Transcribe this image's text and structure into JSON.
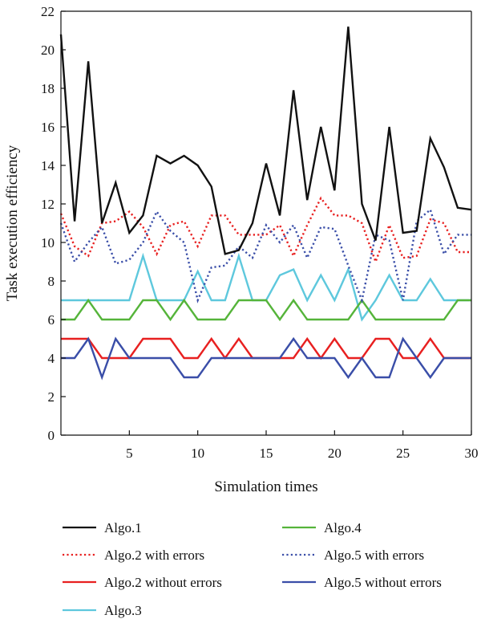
{
  "chart_data": {
    "type": "line",
    "title": "",
    "xlabel": "Simulation times",
    "ylabel": "Task execution efficiency",
    "xlim": [
      0,
      30
    ],
    "ylim": [
      0,
      22
    ],
    "x_ticks": [
      5,
      10,
      15,
      20,
      25,
      30
    ],
    "y_ticks": [
      0,
      2,
      4,
      6,
      8,
      10,
      12,
      14,
      16,
      18,
      20,
      22
    ],
    "grid": false,
    "legend_position": "bottom",
    "x": [
      0,
      1,
      2,
      3,
      4,
      5,
      6,
      7,
      8,
      9,
      10,
      11,
      12,
      13,
      14,
      15,
      16,
      17,
      18,
      19,
      20,
      21,
      22,
      23,
      24,
      25,
      26,
      27,
      28,
      29,
      30
    ],
    "series": [
      {
        "name": "Algo.1",
        "color": "#111111",
        "style": "solid",
        "values": [
          20.8,
          11.1,
          19.4,
          11.0,
          13.1,
          10.5,
          11.4,
          14.5,
          14.1,
          14.5,
          14.0,
          12.9,
          9.4,
          9.6,
          11.0,
          14.1,
          11.4,
          17.9,
          12.2,
          16.0,
          12.7,
          21.2,
          12.0,
          10.1,
          16.0,
          10.5,
          10.6,
          15.4,
          13.9,
          11.8,
          11.7
        ]
      },
      {
        "name": "Algo.2 with errors",
        "color": "#e82020",
        "style": "dotted",
        "values": [
          11.5,
          9.8,
          9.3,
          11.0,
          11.1,
          11.6,
          10.8,
          9.4,
          10.9,
          11.1,
          9.8,
          11.4,
          11.4,
          10.4,
          10.4,
          10.4,
          10.9,
          9.3,
          10.9,
          12.3,
          11.4,
          11.4,
          11.0,
          9.0,
          10.9,
          9.2,
          9.3,
          11.2,
          11.0,
          9.5,
          9.5
        ]
      },
      {
        "name": "Algo.2 without errors",
        "color": "#e82020",
        "style": "solid",
        "values": [
          5,
          5,
          5,
          4,
          4,
          4,
          5,
          5,
          5,
          4,
          4,
          5,
          4,
          5,
          4,
          4,
          4,
          4,
          5,
          4,
          5,
          4,
          4,
          5,
          5,
          4,
          4,
          5,
          4,
          4,
          4
        ]
      },
      {
        "name": "Algo.3",
        "color": "#5ec8dd",
        "style": "solid",
        "values": [
          7,
          7,
          7,
          7,
          7,
          7,
          9.3,
          7,
          7,
          7,
          8.5,
          7,
          7,
          9.3,
          7,
          7,
          8.3,
          8.6,
          7,
          8.3,
          7,
          8.6,
          6,
          7,
          8.3,
          7,
          7,
          8.1,
          7,
          7,
          7
        ]
      },
      {
        "name": "Algo.4",
        "color": "#55b43a",
        "style": "solid",
        "values": [
          6,
          6,
          7,
          6,
          6,
          6,
          7,
          7,
          6,
          7,
          6,
          6,
          6,
          7,
          7,
          7,
          6,
          7,
          6,
          6,
          6,
          6,
          7,
          6,
          6,
          6,
          6,
          6,
          6,
          7,
          7
        ]
      },
      {
        "name": "Algo.5 with errors",
        "color": "#3a4ea8",
        "style": "dotted",
        "values": [
          11.0,
          9.0,
          10.0,
          10.8,
          8.9,
          9.1,
          10.0,
          11.6,
          10.6,
          10.0,
          7.0,
          8.7,
          8.8,
          9.8,
          9.2,
          10.9,
          10.0,
          10.9,
          9.2,
          10.8,
          10.7,
          8.8,
          7.0,
          10.4,
          10.1,
          7.0,
          11.1,
          11.7,
          9.4,
          10.4,
          10.4
        ]
      },
      {
        "name": "Algo.5 without errors",
        "color": "#3a4ea8",
        "style": "solid",
        "values": [
          4,
          4,
          5,
          3,
          5,
          4,
          4,
          4,
          4,
          3,
          3,
          4,
          4,
          4,
          4,
          4,
          4,
          5,
          4,
          4,
          4,
          3,
          4,
          3,
          3,
          5,
          4,
          3,
          4,
          4,
          4
        ]
      }
    ],
    "legend": [
      {
        "label": "Algo.1",
        "color": "#111111",
        "style": "solid"
      },
      {
        "label": "Algo.4",
        "color": "#55b43a",
        "style": "solid"
      },
      {
        "label": "Algo.2 with errors",
        "color": "#e82020",
        "style": "dotted"
      },
      {
        "label": "Algo.5 with errors",
        "color": "#3a4ea8",
        "style": "dotted"
      },
      {
        "label": "Algo.2 without errors",
        "color": "#e82020",
        "style": "solid"
      },
      {
        "label": "Algo.5 without errors",
        "color": "#3a4ea8",
        "style": "solid"
      },
      {
        "label": "Algo.3",
        "color": "#5ec8dd",
        "style": "solid"
      }
    ]
  }
}
